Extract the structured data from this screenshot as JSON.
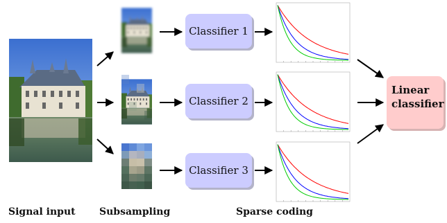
{
  "classifiers": [
    {
      "label": "Classifier 1"
    },
    {
      "label": "Classifier 2"
    },
    {
      "label": "Classifier 3"
    }
  ],
  "linear_classifier": {
    "line1": "Linear",
    "line2": "classifier"
  },
  "captions": {
    "signal_input": "Signal input",
    "subsampling": "Subsampling",
    "sparse_coding": "Sparse coding"
  },
  "colors": {
    "classifier_box": "#ccccff",
    "linear_box": "#ffcccc",
    "curve_red": "#ff0000",
    "curve_blue": "#0000ff",
    "curve_green": "#00cc00"
  }
}
